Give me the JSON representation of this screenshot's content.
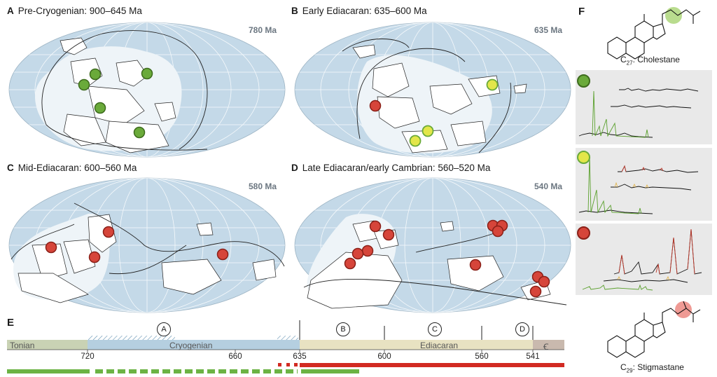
{
  "panels": [
    {
      "letter": "A",
      "title": "Pre-Cryogenian:  900–645 Ma",
      "age": "780 Ma"
    },
    {
      "letter": "B",
      "title": "Early Ediacaran:  635–600 Ma",
      "age": "635 Ma"
    },
    {
      "letter": "C",
      "title": "Mid-Ediacaran:  600–560 Ma",
      "age": "580 Ma"
    },
    {
      "letter": "D",
      "title": "Late Ediacaran/early Cambrian:  560–520 Ma",
      "age": "540 Ma"
    }
  ],
  "panel_f": {
    "letter": "F",
    "top_molecule": {
      "prefix": "C",
      "subscript": "27",
      "name": ": Cholestane"
    },
    "bottom_molecule": {
      "prefix": "C",
      "subscript": "29",
      "name": ": Stigmastane"
    }
  },
  "timeline": {
    "letter": "E",
    "periods": [
      {
        "name": "Tonian",
        "color": "#c9d2b4"
      },
      {
        "name": "Cryogenian",
        "color": "#b5cfe0"
      },
      {
        "name": "Ediacaran",
        "color": "#e8e2c2"
      },
      {
        "name": "Ꞓ",
        "color": "#c9b9ae"
      }
    ],
    "ticks": [
      "720",
      "660",
      "635",
      "600",
      "560",
      "541"
    ],
    "intervals": [
      "A",
      "B",
      "C",
      "D"
    ]
  },
  "colors": {
    "ocean": "#c4d9e8",
    "shelf": "#eef4f8",
    "green": "#6aaa3a",
    "yellow": "#e3e64a",
    "red": "#d6453a",
    "redLine": "#d22a22",
    "greenLine": "#6cb344"
  }
}
